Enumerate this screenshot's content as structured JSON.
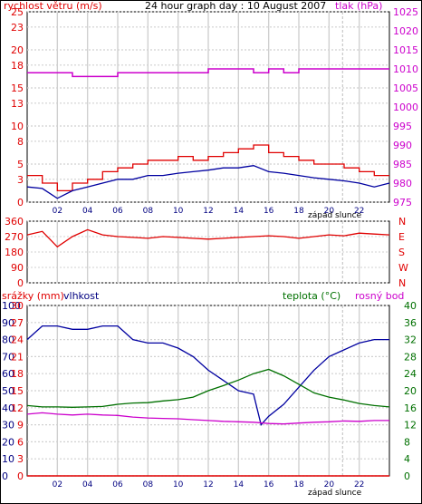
{
  "header": {
    "left_title": "rychlost větru (m/s)",
    "center_title": "24 hour graph day : 10 August 2007",
    "right_title": "tlak (hPa)"
  },
  "mid_labels": {
    "left_title": "srážky (mm)",
    "left_title2": "vlhkost",
    "right_title": "teplota (°C)",
    "right_title2": "rosný bod"
  },
  "sunset_label": "západ slunce",
  "colors": {
    "wind": "#e00000",
    "wind_avg": "#0000a0",
    "pressure": "#cc00cc",
    "direction": "#e00000",
    "humidity": "#0000a0",
    "temperature": "#007000",
    "dewpoint": "#cc00cc",
    "rain": "#e00000",
    "grid": "#d0d0d0",
    "sunset": "#c8c8c8"
  },
  "chart_data": [
    {
      "type": "line",
      "x_ticks": [
        "02",
        "04",
        "06",
        "08",
        "10",
        "12",
        "14",
        "16",
        "18",
        "20",
        "22"
      ],
      "x_range": [
        0,
        24
      ],
      "ylabel": "rychlost větru (m/s)",
      "ylabel2": "tlak (hPa)",
      "ylim": [
        0,
        25
      ],
      "y_ticks": [
        0,
        3,
        5,
        8,
        10,
        13,
        15,
        18,
        20,
        23,
        25
      ],
      "y2lim": [
        975,
        1025
      ],
      "y2_ticks": [
        975,
        980,
        985,
        990,
        995,
        1000,
        1005,
        1010,
        1015,
        1020,
        1025
      ],
      "series": [
        {
          "name": "rychlost větru (m/s)",
          "axis": "left",
          "x": [
            0,
            1,
            2,
            3,
            4,
            5,
            6,
            7,
            8,
            9,
            10,
            11,
            12,
            13,
            14,
            15,
            16,
            17,
            18,
            19,
            20,
            21,
            22,
            23,
            24
          ],
          "y": [
            3.5,
            2.5,
            1.5,
            2.5,
            3.0,
            4.0,
            4.5,
            5.0,
            5.5,
            5.5,
            6.0,
            5.5,
            6.0,
            6.5,
            7.0,
            7.5,
            6.5,
            6.0,
            5.5,
            5.0,
            5.0,
            4.5,
            4.0,
            3.5,
            3.5
          ]
        },
        {
          "axis": "left",
          "x": [
            0,
            1,
            2,
            3,
            4,
            5,
            6,
            7,
            8,
            9,
            10,
            11,
            12,
            13,
            14,
            15,
            16,
            17,
            18,
            19,
            20,
            21,
            22,
            23,
            24
          ],
          "y": [
            2.0,
            1.8,
            0.5,
            1.5,
            2.0,
            2.5,
            3.0,
            3.0,
            3.5,
            3.5,
            3.8,
            4.0,
            4.2,
            4.5,
            4.5,
            4.8,
            4.0,
            3.8,
            3.5,
            3.2,
            3.0,
            2.8,
            2.5,
            2.0,
            2.5
          ]
        },
        {
          "name": "tlak (hPa)",
          "axis": "right",
          "x": [
            0,
            2,
            3,
            4,
            5,
            6,
            7,
            8,
            9,
            10,
            11,
            12,
            13,
            14,
            15,
            16,
            17,
            18,
            19,
            20,
            21,
            22,
            23,
            24
          ],
          "y": [
            1009,
            1009,
            1008,
            1008,
            1008,
            1009,
            1009,
            1009,
            1009,
            1009,
            1009,
            1010,
            1010,
            1010,
            1009,
            1010,
            1009,
            1010,
            1010,
            1010,
            1010,
            1010,
            1010,
            1010
          ]
        }
      ]
    },
    {
      "type": "line",
      "x_range": [
        0,
        24
      ],
      "ylim": [
        0,
        360
      ],
      "y_ticks": [
        0,
        90,
        180,
        270,
        360
      ],
      "y_tick_labels": [
        "0",
        "90",
        "180",
        "270",
        "360"
      ],
      "y2_tick_labels": [
        "N",
        "W",
        "S",
        "E",
        "N"
      ],
      "series": [
        {
          "x": [
            0,
            1,
            2,
            3,
            4,
            5,
            6,
            7,
            8,
            9,
            10,
            11,
            12,
            13,
            14,
            15,
            16,
            17,
            18,
            19,
            20,
            21,
            22,
            23,
            24
          ],
          "y": [
            280,
            300,
            210,
            270,
            310,
            280,
            270,
            265,
            260,
            270,
            265,
            260,
            255,
            260,
            265,
            270,
            275,
            270,
            260,
            270,
            280,
            275,
            290,
            285,
            280
          ]
        }
      ]
    },
    {
      "type": "line",
      "x_ticks": [
        "02",
        "04",
        "06",
        "08",
        "10",
        "12",
        "14",
        "16",
        "18",
        "20",
        "22"
      ],
      "x_range": [
        0,
        24
      ],
      "ylabel": "srážky (mm)",
      "ylim": [
        0,
        30
      ],
      "y_ticks_rain": [
        0,
        3,
        6,
        9,
        12,
        15,
        18,
        21,
        24,
        27,
        30
      ],
      "y_ticks_humidity": [
        0,
        10,
        20,
        30,
        40,
        50,
        60,
        70,
        80,
        90,
        100
      ],
      "y_ticks_left_labels": [
        "0",
        "10",
        "20",
        "30",
        "40",
        "50",
        "60",
        "70",
        "80",
        "90",
        "100"
      ],
      "y_ticks_left_labels2": [
        "0",
        "3",
        "6",
        "9",
        "12",
        "15",
        "18",
        "21",
        "24",
        "27",
        "30"
      ],
      "y2label": "teplota (°C)",
      "y2lim": [
        0,
        40
      ],
      "y2_ticks": [
        0,
        4,
        8,
        12,
        16,
        20,
        24,
        28,
        32,
        36,
        40
      ],
      "series": [
        {
          "name": "vlhkost",
          "axis": "left_humidity",
          "x": [
            0,
            1,
            2,
            3,
            4,
            5,
            6,
            7,
            8,
            9,
            10,
            11,
            12,
            13,
            14,
            15,
            15.5,
            16,
            17,
            18,
            19,
            20,
            21,
            22,
            23,
            24
          ],
          "y": [
            80,
            88,
            88,
            86,
            86,
            88,
            88,
            80,
            78,
            78,
            75,
            70,
            62,
            56,
            50,
            48,
            30,
            35,
            42,
            52,
            62,
            70,
            74,
            78,
            80,
            80
          ]
        },
        {
          "name": "teplota (°C)",
          "axis": "right",
          "x": [
            0,
            1,
            2,
            3,
            4,
            5,
            6,
            7,
            8,
            9,
            10,
            11,
            12,
            13,
            14,
            15,
            16,
            17,
            18,
            19,
            20,
            21,
            22,
            23,
            24
          ],
          "y": [
            16.5,
            16.2,
            16.2,
            16.1,
            16.2,
            16.3,
            16.8,
            17.1,
            17.2,
            17.6,
            17.9,
            18.5,
            20.0,
            21.2,
            22.5,
            24.0,
            25.0,
            23.5,
            21.5,
            19.5,
            18.5,
            17.8,
            17.0,
            16.5,
            16.2
          ]
        },
        {
          "name": "rosný bod",
          "axis": "right",
          "x": [
            0,
            1,
            2,
            3,
            4,
            5,
            6,
            7,
            8,
            9,
            10,
            11,
            12,
            13,
            14,
            15,
            16,
            17,
            18,
            19,
            20,
            21,
            22,
            23,
            24
          ],
          "y": [
            14.5,
            14.8,
            14.5,
            14.3,
            14.5,
            14.3,
            14.2,
            13.8,
            13.6,
            13.5,
            13.4,
            13.2,
            13.0,
            12.8,
            12.7,
            12.6,
            12.3,
            12.2,
            12.4,
            12.6,
            12.7,
            12.9,
            12.8,
            13.0,
            13.0
          ]
        },
        {
          "name": "srážky (mm)",
          "axis": "left_rain",
          "x": [
            0,
            24
          ],
          "y": [
            0,
            0
          ]
        }
      ]
    }
  ]
}
